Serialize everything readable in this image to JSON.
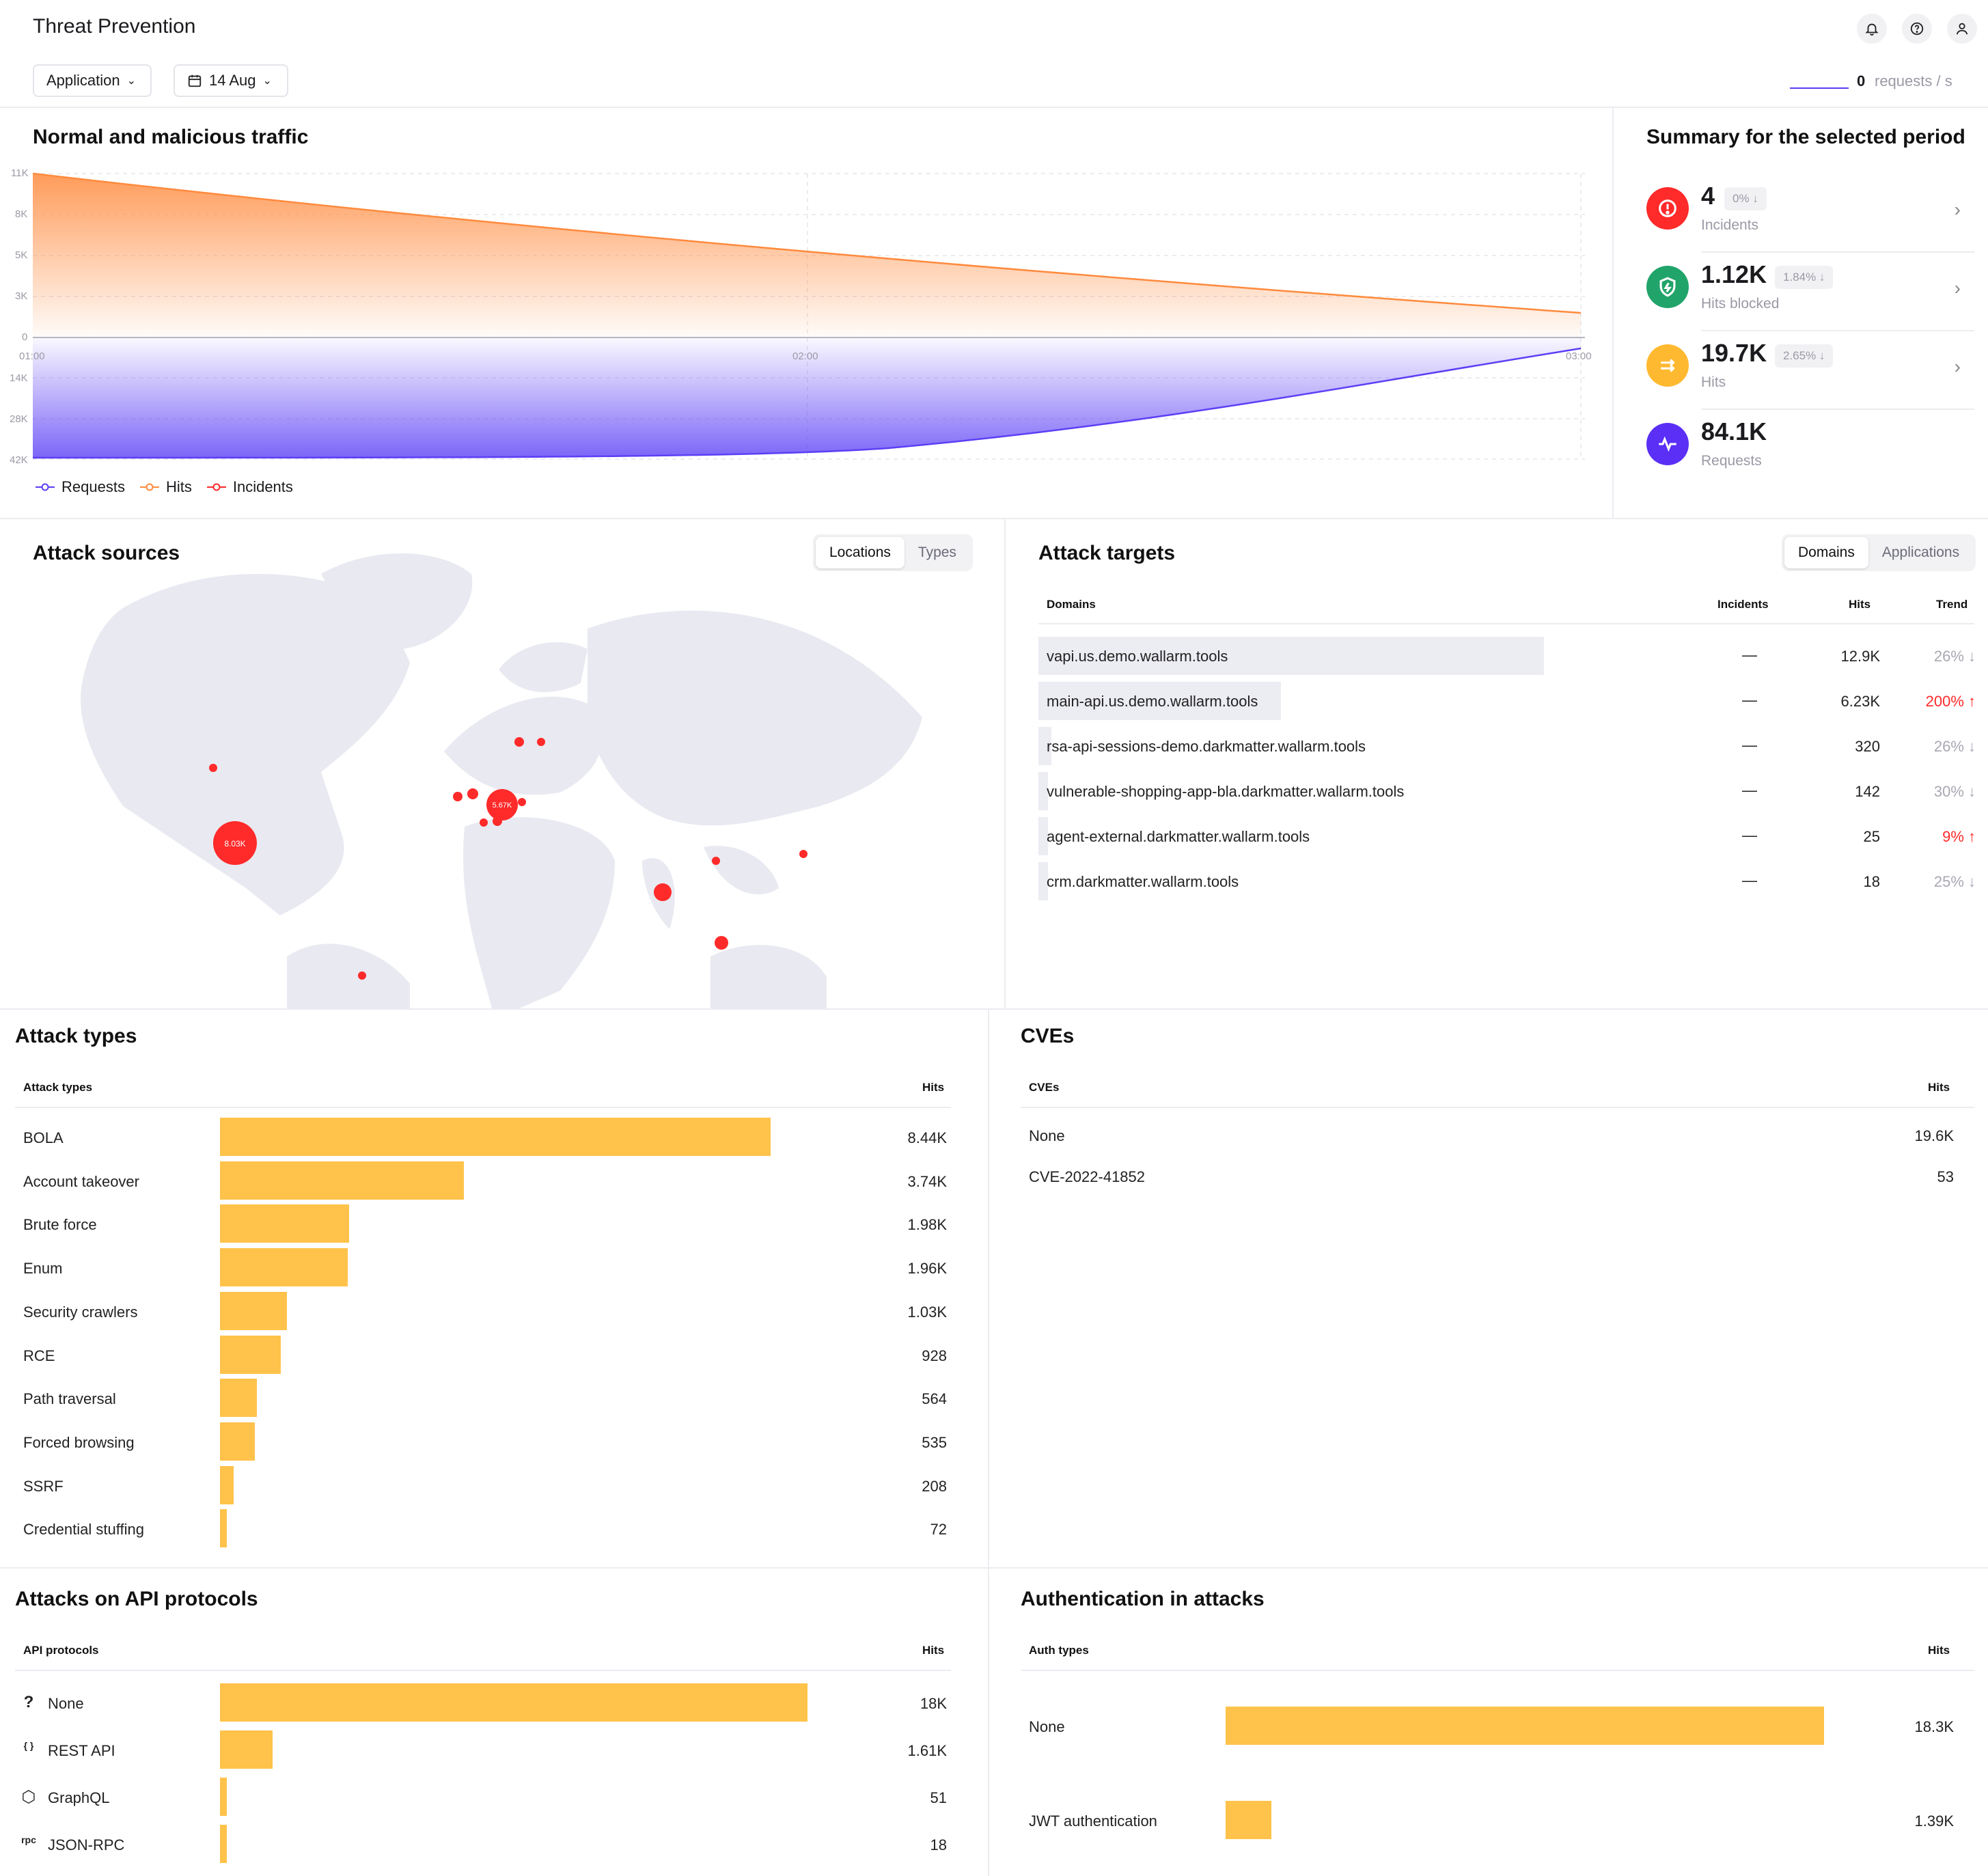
{
  "header": {
    "title": "Threat Prevention",
    "app_select": "Application",
    "date_select": "14 Aug",
    "rps_value": "0",
    "rps_unit": "requests / s"
  },
  "traffic": {
    "title": "Normal and malicious traffic",
    "legend": [
      "Requests",
      "Hits",
      "Incidents"
    ],
    "colors": {
      "requests": "#5b3ff6",
      "hits": "#ff8a3d",
      "incidents": "#ff2a2a"
    }
  },
  "chart_data": {
    "type": "area",
    "x": [
      "01:00",
      "02:00",
      "03:00"
    ],
    "y_ticks_top": [
      "11K",
      "8K",
      "5K",
      "3K",
      "0"
    ],
    "y_ticks_bottom": [
      "14K",
      "28K",
      "42K"
    ],
    "series": [
      {
        "name": "Hits",
        "values": [
          11000,
          8000,
          1700
        ]
      },
      {
        "name": "Requests",
        "values": [
          42000,
          40000,
          1000
        ]
      }
    ]
  },
  "summary": {
    "title": "Summary for the selected period",
    "items": [
      {
        "value": "4",
        "badge": "0%",
        "label": "Incidents",
        "color": "#ff2a2a"
      },
      {
        "value": "1.12K",
        "badge": "1.84%",
        "label": "Hits blocked",
        "color": "#21a46a"
      },
      {
        "value": "19.7K",
        "badge": "2.65%",
        "label": "Hits",
        "color": "#ffb930"
      },
      {
        "value": "84.1K",
        "badge": "",
        "label": "Requests",
        "color": "#5b2ff6"
      }
    ]
  },
  "sources": {
    "title": "Attack sources",
    "tabs": [
      "Locations",
      "Types"
    ],
    "bubbles": [
      "8.03K",
      "5.67K"
    ]
  },
  "targets": {
    "title": "Attack targets",
    "tabs": [
      "Domains",
      "Applications"
    ],
    "headers": [
      "Domains",
      "Incidents",
      "Hits",
      "Trend"
    ],
    "rows": [
      {
        "domain": "vapi.us.demo.wallarm.tools",
        "incidents": "—",
        "hits": "12.9K",
        "trend": "26%",
        "dir": "↓",
        "up": false,
        "share": 1.0
      },
      {
        "domain": "main-api.us.demo.wallarm.tools",
        "incidents": "—",
        "hits": "6.23K",
        "trend": "200%",
        "dir": "↑",
        "up": true,
        "share": 0.48
      },
      {
        "domain": "rsa-api-sessions-demo.darkmatter.wallarm.tools",
        "incidents": "—",
        "hits": "320",
        "trend": "26%",
        "dir": "↓",
        "up": false,
        "share": 0.025
      },
      {
        "domain": "vulnerable-shopping-app-bla.darkmatter.wallarm.tools",
        "incidents": "—",
        "hits": "142",
        "trend": "30%",
        "dir": "↓",
        "up": false,
        "share": 0.012
      },
      {
        "domain": "agent-external.darkmatter.wallarm.tools",
        "incidents": "—",
        "hits": "25",
        "trend": "9%",
        "dir": "↑",
        "up": true,
        "share": 0.004
      },
      {
        "domain": "crm.darkmatter.wallarm.tools",
        "incidents": "—",
        "hits": "18",
        "trend": "25%",
        "dir": "↓",
        "up": false,
        "share": 0.003
      }
    ]
  },
  "attack_types": {
    "title": "Attack types",
    "headers": [
      "Attack types",
      "Hits"
    ],
    "rows": [
      {
        "label": "BOLA",
        "hits": "8.44K",
        "value": 8440
      },
      {
        "label": "Account takeover",
        "hits": "3.74K",
        "value": 3740
      },
      {
        "label": "Brute force",
        "hits": "1.98K",
        "value": 1980
      },
      {
        "label": "Enum",
        "hits": "1.96K",
        "value": 1960
      },
      {
        "label": "Security crawlers",
        "hits": "1.03K",
        "value": 1030
      },
      {
        "label": "RCE",
        "hits": "928",
        "value": 928
      },
      {
        "label": "Path traversal",
        "hits": "564",
        "value": 564
      },
      {
        "label": "Forced browsing",
        "hits": "535",
        "value": 535
      },
      {
        "label": "SSRF",
        "hits": "208",
        "value": 208
      },
      {
        "label": "Credential stuffing",
        "hits": "72",
        "value": 72
      }
    ]
  },
  "cves": {
    "title": "CVEs",
    "headers": [
      "CVEs",
      "Hits"
    ],
    "rows": [
      {
        "label": "None",
        "hits": "19.6K"
      },
      {
        "label": "CVE-2022-41852",
        "hits": "53"
      }
    ]
  },
  "protocols": {
    "title": "Attacks on API protocols",
    "headers": [
      "API protocols",
      "Hits"
    ],
    "rows": [
      {
        "label": "None",
        "hits": "18K",
        "value": 18000,
        "icon": "question-icon",
        "glyph": "?"
      },
      {
        "label": "REST API",
        "hits": "1.61K",
        "value": 1610,
        "icon": "braces-icon",
        "glyph": "{ }"
      },
      {
        "label": "GraphQL",
        "hits": "51",
        "value": 51,
        "icon": "graphql-icon",
        "glyph": "⬡"
      },
      {
        "label": "JSON-RPC",
        "hits": "18",
        "value": 18,
        "icon": "rpc-icon",
        "glyph": "rpc"
      }
    ]
  },
  "auth": {
    "title": "Authentication in attacks",
    "headers": [
      "Auth types",
      "Hits"
    ],
    "rows": [
      {
        "label": "None",
        "hits": "18.3K",
        "value": 18300
      },
      {
        "label": "JWT authentication",
        "hits": "1.39K",
        "value": 1390
      }
    ]
  }
}
